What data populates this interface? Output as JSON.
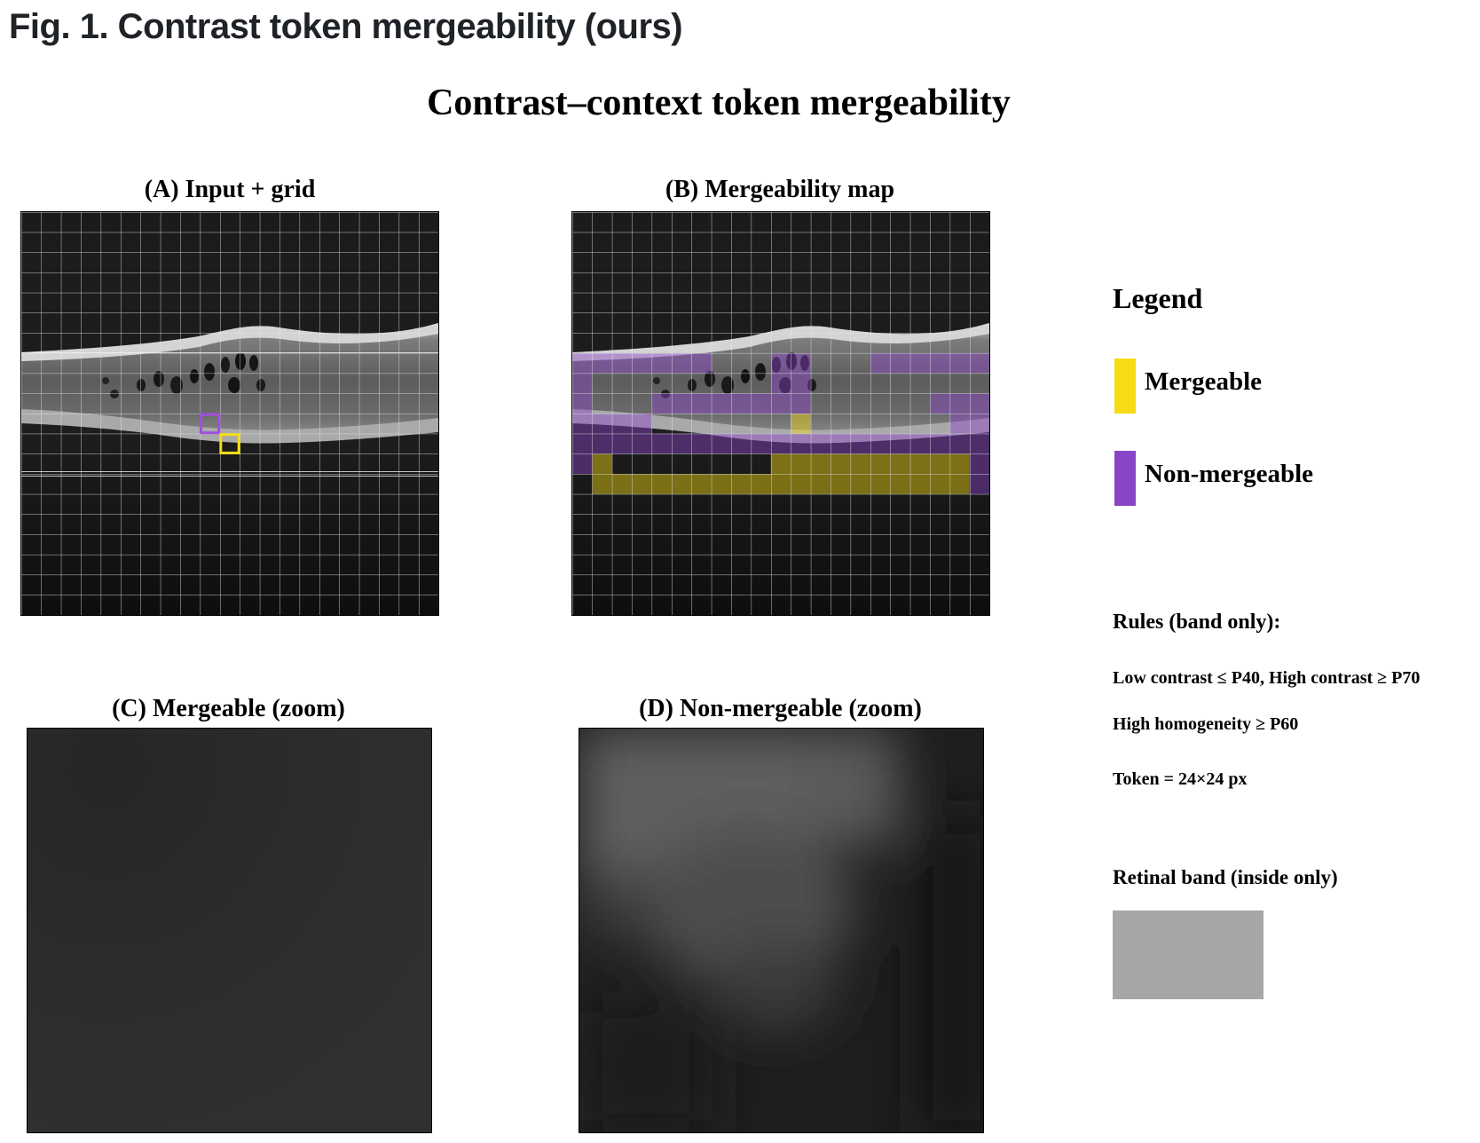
{
  "figure": {
    "caption": "Fig. 1. Contrast token mergeability (ours)",
    "title": "Contrast–context token mergeability"
  },
  "panels": {
    "a": {
      "title": "(A) Input + grid"
    },
    "b": {
      "title": "(B) Mergeability map"
    },
    "c": {
      "title": "(C) Mergeable (zoom)"
    },
    "d": {
      "title": "(D) Non-mergeable (zoom)"
    }
  },
  "legend": {
    "title": "Legend",
    "mergeable": {
      "label": "Mergeable",
      "color": "#f5dc14"
    },
    "non_mergeable": {
      "label": "Non-mergeable",
      "color": "#8a44c8"
    }
  },
  "rules": {
    "heading": "Rules (band only):",
    "contrast": "Low contrast ≤ P40, High contrast ≥ P70",
    "homogeneity": "High homogeneity ≥ P60",
    "token": "Token = 24×24 px"
  },
  "band": {
    "heading": "Retinal band (inside only)",
    "color": "#a6a6a6"
  },
  "grid": {
    "cols": 21,
    "rows": 20,
    "purple_cells": [
      [
        7,
        0
      ],
      [
        7,
        1
      ],
      [
        7,
        2
      ],
      [
        7,
        3
      ],
      [
        7,
        4
      ],
      [
        7,
        5
      ],
      [
        7,
        6
      ],
      [
        7,
        10
      ],
      [
        7,
        11
      ],
      [
        7,
        15
      ],
      [
        7,
        16
      ],
      [
        7,
        17
      ],
      [
        7,
        18
      ],
      [
        7,
        19
      ],
      [
        7,
        20
      ],
      [
        8,
        0
      ],
      [
        8,
        10
      ],
      [
        8,
        11
      ],
      [
        9,
        0
      ],
      [
        9,
        4
      ],
      [
        9,
        5
      ],
      [
        9,
        6
      ],
      [
        9,
        7
      ],
      [
        9,
        8
      ],
      [
        9,
        9
      ],
      [
        9,
        10
      ],
      [
        9,
        11
      ],
      [
        9,
        18
      ],
      [
        9,
        19
      ],
      [
        9,
        20
      ],
      [
        10,
        0
      ],
      [
        10,
        1
      ],
      [
        10,
        2
      ],
      [
        10,
        3
      ],
      [
        10,
        19
      ],
      [
        10,
        20
      ],
      [
        11,
        0
      ],
      [
        11,
        1
      ],
      [
        11,
        2
      ],
      [
        11,
        3
      ],
      [
        11,
        4
      ],
      [
        11,
        5
      ],
      [
        11,
        6
      ],
      [
        11,
        7
      ],
      [
        11,
        8
      ],
      [
        11,
        9
      ],
      [
        11,
        10
      ],
      [
        11,
        11
      ],
      [
        11,
        12
      ],
      [
        11,
        13
      ],
      [
        11,
        14
      ],
      [
        11,
        15
      ],
      [
        11,
        16
      ],
      [
        11,
        17
      ],
      [
        11,
        18
      ],
      [
        11,
        19
      ],
      [
        11,
        20
      ],
      [
        12,
        0
      ],
      [
        12,
        20
      ],
      [
        13,
        20
      ]
    ],
    "yellow_cells": [
      [
        10,
        11
      ],
      [
        12,
        1
      ],
      [
        12,
        10
      ],
      [
        12,
        11
      ],
      [
        12,
        12
      ],
      [
        12,
        13
      ],
      [
        12,
        14
      ],
      [
        12,
        15
      ],
      [
        12,
        16
      ],
      [
        12,
        17
      ],
      [
        12,
        18
      ],
      [
        12,
        19
      ],
      [
        13,
        1
      ],
      [
        13,
        2
      ],
      [
        13,
        3
      ],
      [
        13,
        4
      ],
      [
        13,
        5
      ],
      [
        13,
        6
      ],
      [
        13,
        7
      ],
      [
        13,
        8
      ],
      [
        13,
        9
      ],
      [
        13,
        10
      ],
      [
        13,
        11
      ],
      [
        13,
        12
      ],
      [
        13,
        13
      ],
      [
        13,
        14
      ],
      [
        13,
        15
      ],
      [
        13,
        16
      ],
      [
        13,
        17
      ],
      [
        13,
        18
      ],
      [
        13,
        19
      ]
    ],
    "highlight_mergeable": [
      11,
      10
    ],
    "highlight_non_mergeable": [
      10,
      9
    ]
  }
}
